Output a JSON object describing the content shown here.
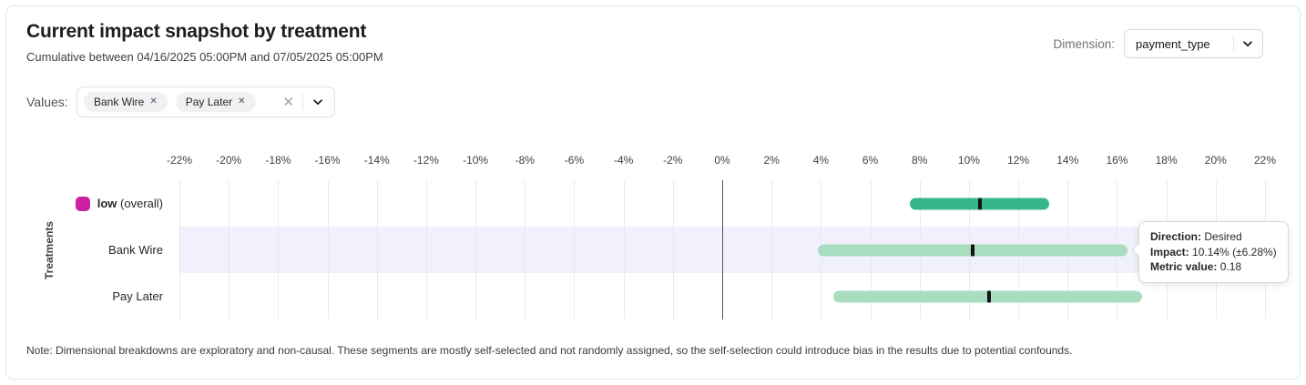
{
  "header": {
    "title": "Current impact snapshot by treatment",
    "subtitle": "Cumulative between 04/16/2025 05:00PM and 07/05/2025 05:00PM",
    "dimension_label": "Dimension:",
    "dimension_value": "payment_type"
  },
  "filters": {
    "values_label": "Values:",
    "chips": [
      {
        "label": "Bank Wire"
      },
      {
        "label": "Pay Later"
      }
    ]
  },
  "icons": {
    "chip_remove": "✕",
    "clear": "✕"
  },
  "chart_data": {
    "type": "bar",
    "subtype": "horizontal-interval",
    "ylabel": "Treatments",
    "xlabel": "",
    "xlim": [
      -22,
      22
    ],
    "x_tick_step": 2,
    "x_tick_suffix": "%",
    "grid": true,
    "zero_line": true,
    "marker_color": "#131316",
    "highlight_band_color": "#e4e6fa",
    "rows": [
      {
        "label": "low",
        "label_bold": true,
        "label_suffix": "(overall)",
        "swatch_color": "#cb20a5",
        "bar_color": "#35b789",
        "ci_low": 7.6,
        "ci_high": 13.25,
        "impact": 10.45,
        "highlighted": false
      },
      {
        "label": "Bank Wire",
        "label_bold": false,
        "label_suffix": "",
        "swatch_color": "",
        "bar_color": "#a8ddc0",
        "ci_low": 3.86,
        "ci_high": 16.42,
        "impact": 10.14,
        "highlighted": true
      },
      {
        "label": "Pay Later",
        "label_bold": false,
        "label_suffix": "",
        "swatch_color": "",
        "bar_color": "#a8ddc0",
        "ci_low": 4.5,
        "ci_high": 17.0,
        "impact": 10.8,
        "highlighted": false
      }
    ]
  },
  "tooltip": {
    "direction_label": "Direction:",
    "direction_value": "Desired",
    "impact_label": "Impact:",
    "impact_value": "10.14% (±6.28%)",
    "metric_label": "Metric value:",
    "metric_value": "0.18"
  },
  "note": "Note: Dimensional breakdowns are exploratory and non-causal. These segments are mostly self-selected and not randomly assigned, so the self-selection could introduce bias in the results due to potential confounds."
}
